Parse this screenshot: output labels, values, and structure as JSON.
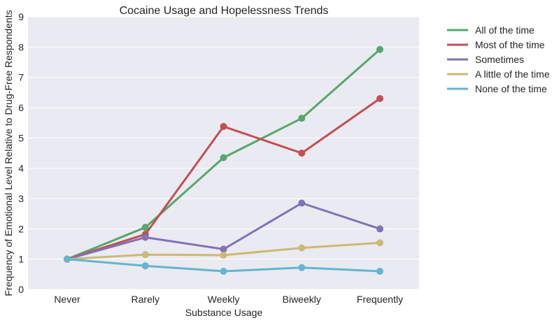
{
  "chart_data": {
    "type": "line",
    "title": "Cocaine Usage and Hopelessness Trends",
    "xlabel": "Substance Usage",
    "ylabel": "Frequency of Emotional Level Relative to Drug-Free Respondents",
    "categories": [
      "Never",
      "Rarely",
      "Weekly",
      "Biweekly",
      "Frequently"
    ],
    "ylim": [
      0,
      9
    ],
    "yticks": [
      0,
      1,
      2,
      3,
      4,
      5,
      6,
      7,
      8,
      9
    ],
    "grid": true,
    "legend_position": "outside-right",
    "series": [
      {
        "name": "All of the time",
        "color": "#55a868",
        "values": [
          1.0,
          2.05,
          4.35,
          5.65,
          7.92
        ]
      },
      {
        "name": "Most of the time",
        "color": "#c44e52",
        "values": [
          1.0,
          1.82,
          5.38,
          4.5,
          6.3
        ]
      },
      {
        "name": "Sometimes",
        "color": "#8172b2",
        "values": [
          1.0,
          1.72,
          1.33,
          2.85,
          2.0
        ]
      },
      {
        "name": "A little of the time",
        "color": "#ccb974",
        "values": [
          1.0,
          1.15,
          1.13,
          1.37,
          1.54
        ]
      },
      {
        "name": "None of the time",
        "color": "#64b5cd",
        "values": [
          1.0,
          0.78,
          0.6,
          0.72,
          0.6
        ]
      }
    ]
  }
}
